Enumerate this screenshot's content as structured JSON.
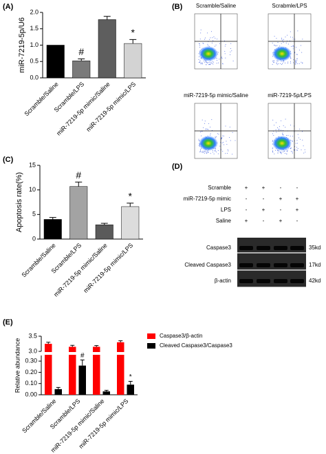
{
  "chart_data": [
    {
      "type": "bar",
      "label": "(A)",
      "ylabel": "miR-7219-5p/U6",
      "categories": [
        "Scramble/Saline",
        "Scramble/LPS",
        "miR-7219-5p mimic/Saline",
        "miR-7219-5p mimic/LPS"
      ],
      "values": [
        1.0,
        0.52,
        1.78,
        1.05
      ],
      "errors": [
        0,
        0.06,
        0.1,
        0.12
      ],
      "colors": [
        "#000000",
        "#7a7a7a",
        "#5e5e5e",
        "#d3d3d3"
      ],
      "markers": [
        null,
        "#",
        null,
        "*"
      ],
      "ylim": [
        0,
        2.0
      ],
      "yticks": [
        {
          "value": 0,
          "label": "0.0"
        },
        {
          "value": 0.5,
          "label": "0.5"
        },
        {
          "value": 1.0,
          "label": "1.0"
        },
        {
          "value": 1.5,
          "label": "1.5"
        },
        {
          "value": 2.0,
          "label": "2.0"
        }
      ]
    },
    {
      "type": "bar",
      "label": "(C)",
      "ylabel": "Apoptosis rate(%)",
      "categories": [
        "Scramble/Saline",
        "Scramble/LPS",
        "miR-7219-5p mimic/Saline",
        "miR-7219-5p mimic/LPS"
      ],
      "values": [
        4.0,
        10.7,
        2.9,
        6.6
      ],
      "errors": [
        0.4,
        0.9,
        0.3,
        0.7
      ],
      "colors": [
        "#000000",
        "#a3a3a3",
        "#5a5a5a",
        "#dcdcdc"
      ],
      "markers": [
        null,
        "#",
        null,
        "*"
      ],
      "ylim": [
        0,
        15
      ],
      "yticks": [
        0,
        5,
        10,
        15
      ]
    },
    {
      "type": "grouped-bar",
      "label": "(E)",
      "ylabel": "Relative abundance",
      "categories": [
        "Scramble/Saline",
        "Scramble/LPS",
        "miR-7219-5p mimic/Saline",
        "miR-7219-5p mimic/LPS"
      ],
      "series": [
        {
          "name": "Caspase3/β-actin",
          "color": "#ff0000",
          "values": [
            3.25,
            3.15,
            3.15,
            3.3
          ],
          "errors": [
            0.05,
            0.05,
            0.04,
            0.05
          ]
        },
        {
          "name": "Cleaved Caspase3/Caspase3",
          "color": "#000000",
          "values": [
            0.05,
            0.26,
            0.03,
            0.09
          ],
          "errors": [
            0.015,
            0.05,
            0.01,
            0.03
          ],
          "markers": [
            null,
            "#",
            null,
            "*"
          ]
        }
      ],
      "ylim": [
        0,
        0.35
      ],
      "yticks": [
        {
          "value": 0,
          "label": "0.00"
        },
        {
          "value": 0.1,
          "label": "0.10"
        },
        {
          "value": 0.2,
          "label": "0.20"
        },
        {
          "value": 0.3,
          "label": "0.30"
        }
      ],
      "y_break": {
        "ylim": [
          3.0,
          3.5
        ],
        "yticks": [
          {
            "value": 3.0,
            "label": "3.0"
          },
          {
            "value": 3.5,
            "label": "3.5"
          }
        ]
      },
      "legend": "upper right"
    }
  ],
  "flow_panel": {
    "label": "(B)",
    "plots": [
      {
        "title": "Scramble/Saline"
      },
      {
        "title": "Scrabmle/LPS"
      },
      {
        "title": "miR-7219-5p mimic/Saline"
      },
      {
        "title": "miR-7219-5p/LPS"
      }
    ]
  },
  "blot_panel": {
    "label": "(D)",
    "conditions": [
      {
        "name": "Scramble",
        "signs": [
          "+",
          "+",
          "-",
          "-"
        ]
      },
      {
        "name": "miR-7219-5p mimic",
        "signs": [
          "-",
          "-",
          "+",
          "+"
        ]
      },
      {
        "name": "LPS",
        "signs": [
          "-",
          "+",
          "-",
          "+"
        ]
      },
      {
        "name": "Saline",
        "signs": [
          "+",
          "-",
          "+",
          "-"
        ]
      }
    ],
    "bands": [
      {
        "name": "Caspase3",
        "size": "35kd"
      },
      {
        "name": "Cleaved Caspase3",
        "size": "17kd"
      },
      {
        "name": "β-actin",
        "size": "42kd"
      }
    ]
  }
}
